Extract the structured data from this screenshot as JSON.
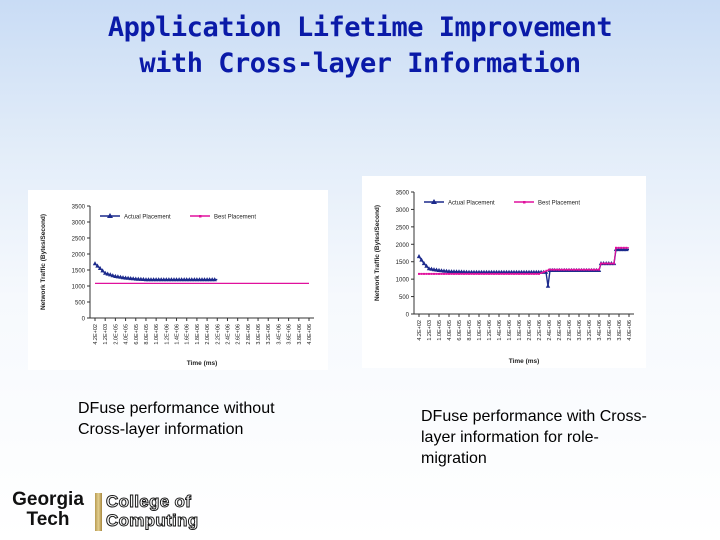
{
  "slide": {
    "title_line1": "Application Lifetime Improvement",
    "title_line2": "with Cross-layer Information"
  },
  "captions": {
    "left": "DFuse performance without Cross-layer information",
    "right": "DFuse performance with Cross-layer information for role-migration"
  },
  "logo": {
    "georgia": "Georgia",
    "tech": "Tech",
    "college_of": "College of",
    "computing": "Computing"
  },
  "colors": {
    "title": "#0a1aa8",
    "actual_series": "#1c2a8c",
    "best_series": "#e0119d",
    "logo_gold": "#c8ad64"
  },
  "chart_data": [
    {
      "type": "line",
      "title": "",
      "xlabel": "Time (ms)",
      "ylabel": "Network Traffic (Bytes/Second)",
      "ylim": [
        0,
        3500
      ],
      "yticks": [
        0,
        500,
        1000,
        1500,
        2000,
        2500,
        3000,
        3500
      ],
      "xtick_labels": [
        "4.2E+02",
        "1.2E+03",
        "2.0E+05",
        "4.0E+05",
        "6.0E+05",
        "8.0E+05",
        "1.0E+06",
        "1.2E+06",
        "1.4E+06",
        "1.6E+06",
        "1.8E+06",
        "2.0E+06",
        "2.2E+06",
        "2.4E+06",
        "2.6E+06",
        "2.8E+06",
        "3.0E+06",
        "3.2E+06",
        "3.4E+06",
        "3.6E+06",
        "3.8E+06",
        "4.0E+06"
      ],
      "legend_position": "top",
      "grid": false,
      "series": [
        {
          "name": "Actual Placement",
          "points": [
            [
              0,
              1700
            ],
            [
              1,
              1400
            ],
            [
              2,
              1300
            ],
            [
              3,
              1250
            ],
            [
              4,
              1220
            ],
            [
              5,
              1200
            ],
            [
              6,
              1200
            ],
            [
              7,
              1200
            ],
            [
              8,
              1200
            ],
            [
              9,
              1200
            ],
            [
              10,
              1200
            ],
            [
              11,
              1200
            ],
            [
              12,
              1200
            ]
          ]
        },
        {
          "name": "Best Placement",
          "points": [
            [
              0,
              1080
            ],
            [
              21,
              1080
            ]
          ]
        }
      ]
    },
    {
      "type": "line",
      "title": "",
      "xlabel": "Time (ms)",
      "ylabel": "Network Traffic (Bytes/Second)",
      "ylim": [
        0,
        3500
      ],
      "yticks": [
        0,
        500,
        1000,
        1500,
        2000,
        2500,
        3000,
        3500
      ],
      "xtick_labels": [
        "4.2E+02",
        "1.2E+03",
        "1.0E+05",
        "4.0E+05",
        "6.0E+05",
        "8.0E+05",
        "1.0E+06",
        "1.2E+06",
        "1.4E+06",
        "1.6E+06",
        "1.8E+06",
        "2.0E+06",
        "2.2E+06",
        "2.4E+06",
        "2.6E+06",
        "2.8E+06",
        "3.0E+06",
        "3.2E+06",
        "3.4E+06",
        "3.6E+06",
        "3.8E+06",
        "4.0E+06"
      ],
      "legend_position": "top",
      "grid": false,
      "series": [
        {
          "name": "Actual Placement",
          "points": [
            [
              0,
              1650
            ],
            [
              0.5,
              1450
            ],
            [
              1,
              1300
            ],
            [
              2,
              1250
            ],
            [
              3,
              1220
            ],
            [
              5,
              1200
            ],
            [
              7,
              1200
            ],
            [
              9,
              1200
            ],
            [
              11,
              1200
            ],
            [
              12.7,
              1200
            ],
            [
              12.9,
              800
            ],
            [
              13.1,
              1250
            ],
            [
              15,
              1250
            ],
            [
              17,
              1250
            ],
            [
              18,
              1250
            ],
            [
              18.2,
              1450
            ],
            [
              19.5,
              1450
            ],
            [
              19.7,
              1850
            ],
            [
              21,
              1850
            ]
          ]
        },
        {
          "name": "Best Placement",
          "points": [
            [
              0,
              1150
            ],
            [
              6,
              1150
            ],
            [
              8,
              1150
            ],
            [
              10,
              1150
            ],
            [
              12,
              1150
            ],
            [
              13,
              1270
            ],
            [
              15,
              1270
            ],
            [
              17,
              1270
            ],
            [
              18,
              1270
            ],
            [
              18.2,
              1450
            ],
            [
              19.5,
              1450
            ],
            [
              19.7,
              1900
            ],
            [
              21,
              1900
            ]
          ]
        }
      ]
    }
  ]
}
